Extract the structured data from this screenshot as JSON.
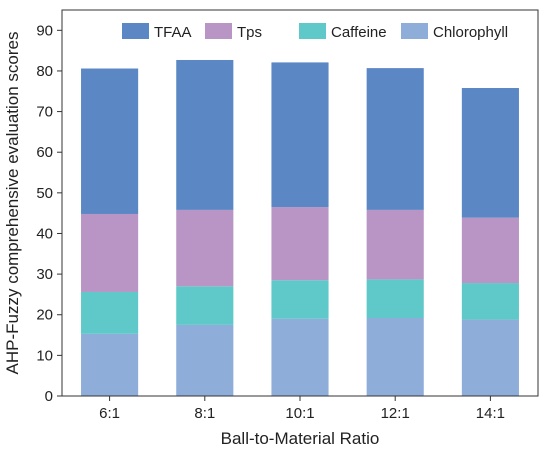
{
  "chart_data": {
    "type": "bar",
    "stacked": true,
    "categories": [
      "6:1",
      "8:1",
      "10:1",
      "12:1",
      "14:1"
    ],
    "series": [
      {
        "name": "Chlorophyll",
        "values": [
          15.3,
          17.5,
          19.0,
          19.2,
          18.8
        ],
        "color": "#8fadd9"
      },
      {
        "name": "Caffeine",
        "values": [
          10.3,
          9.5,
          9.5,
          9.5,
          9.0
        ],
        "color": "#5fc8c8"
      },
      {
        "name": "Tps",
        "values": [
          19.2,
          18.8,
          18.0,
          17.1,
          16.1
        ],
        "color": "#b895c4"
      },
      {
        "name": "TFAA",
        "values": [
          35.8,
          36.9,
          35.6,
          34.9,
          31.9
        ],
        "color": "#5b87c5"
      }
    ],
    "legend_order": [
      "TFAA",
      "Tps",
      "Caffeine",
      "Chlorophyll"
    ],
    "xlabel": "Ball-to-Material Ratio",
    "ylabel": "AHP-Fuzzy comprehensive evaluation scores",
    "ylim": [
      0,
      95
    ],
    "yticks": [
      0,
      10,
      20,
      30,
      40,
      50,
      60,
      70,
      80,
      90
    ],
    "grid": false,
    "legend_position": "top"
  }
}
